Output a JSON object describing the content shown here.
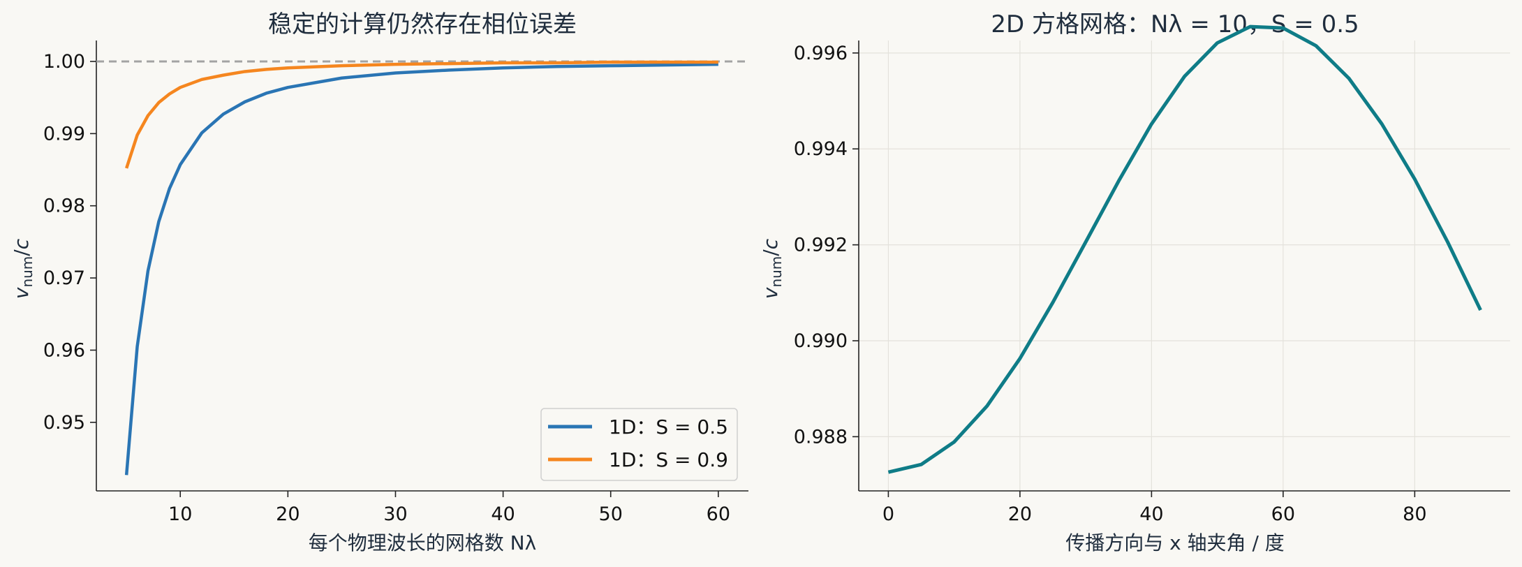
{
  "chart_data": [
    {
      "type": "line",
      "title": "稳定的计算仍然存在相位误差",
      "xlabel": "每个物理波长的网格数 Nλ",
      "ylabel": "v_num/c",
      "xlim": [
        2.2,
        62.8
      ],
      "ylim": [
        0.9405,
        1.0029
      ],
      "xticks": [
        10,
        20,
        30,
        40,
        50,
        60
      ],
      "yticks": [
        0.95,
        0.96,
        0.97,
        0.98,
        0.99,
        1.0
      ],
      "ytick_labels": [
        "0.95",
        "0.96",
        "0.97",
        "0.98",
        "0.99",
        "1.00"
      ],
      "grid": false,
      "legend_position": "bottom-right",
      "reference_line": {
        "y": 1.0,
        "style": "dashed",
        "color": "#a3a3a3"
      },
      "series": [
        {
          "name": "1D：S = 0.5",
          "color": "#2a75b4",
          "x": [
            5,
            6,
            7,
            8,
            9,
            10,
            12,
            14,
            16,
            18,
            20,
            25,
            30,
            35,
            40,
            45,
            50,
            55,
            60
          ],
          "y": [
            0.9427,
            0.9605,
            0.971,
            0.9778,
            0.9824,
            0.9857,
            0.9901,
            0.9927,
            0.9944,
            0.9956,
            0.9964,
            0.9977,
            0.9984,
            0.9988,
            0.9991,
            0.9993,
            0.9994,
            0.9995,
            0.9996
          ]
        },
        {
          "name": "1D：S = 0.9",
          "color": "#f5861f",
          "x": [
            5,
            6,
            7,
            8,
            9,
            10,
            12,
            14,
            16,
            18,
            20,
            25,
            30,
            35,
            40,
            45,
            50,
            55,
            60
          ],
          "y": [
            0.9852,
            0.9898,
            0.9925,
            0.9943,
            0.9955,
            0.9964,
            0.9975,
            0.9981,
            0.9986,
            0.9989,
            0.9991,
            0.9994,
            0.9996,
            0.9997,
            0.9998,
            0.9998,
            0.9999,
            0.9999,
            0.9999
          ]
        }
      ]
    },
    {
      "type": "line",
      "title": "2D 方格网格：Nλ = 10，S = 0.5",
      "xlabel": "传播方向与 x 轴夹角 / 度",
      "ylabel": "v_num/c",
      "xlim": [
        -4.5,
        94.5
      ],
      "ylim": [
        0.98687,
        0.99626
      ],
      "xticks": [
        0,
        20,
        40,
        60,
        80
      ],
      "yticks": [
        0.988,
        0.99,
        0.992,
        0.994,
        0.996
      ],
      "ytick_labels": [
        "0.988",
        "0.990",
        "0.992",
        "0.994",
        "0.996"
      ],
      "grid": true,
      "series": [
        {
          "color": "#0f7c87",
          "x": [
            0,
            5,
            10,
            15,
            20,
            25,
            30,
            35,
            40,
            45,
            50,
            55,
            60,
            65,
            70,
            75,
            80,
            85,
            90
          ],
          "y": [
            0.98726,
            0.98742,
            0.98789,
            0.98864,
            0.98963,
            0.9908,
            0.99206,
            0.99333,
            0.99452,
            0.99551,
            0.99621,
            0.99655,
            0.99652,
            0.99615,
            0.99547,
            0.99452,
            0.99337,
            0.99206,
            0.99064
          ]
        }
      ]
    }
  ]
}
